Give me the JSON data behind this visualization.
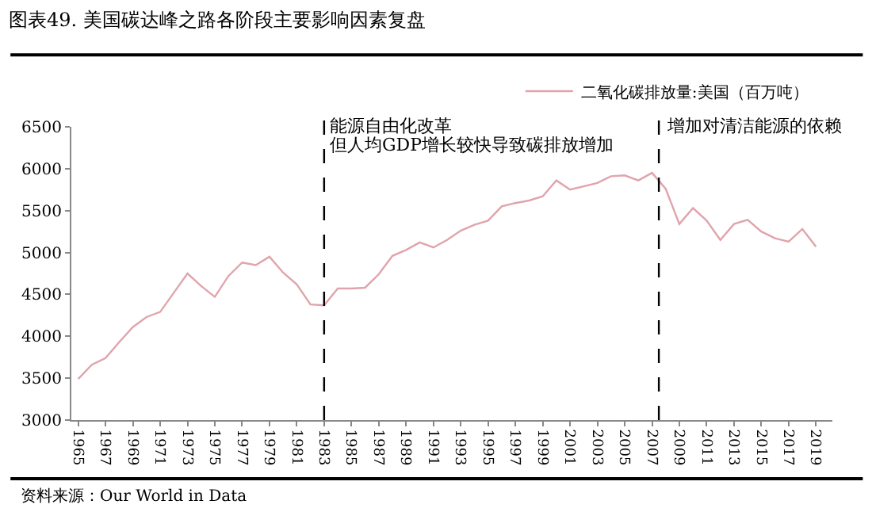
{
  "chart_data": {
    "type": "line",
    "title": "图表49. 美国碳达峰之路各阶段主要影响因素复盘",
    "x": [
      1965,
      1966,
      1967,
      1968,
      1969,
      1970,
      1971,
      1972,
      1973,
      1974,
      1975,
      1976,
      1977,
      1978,
      1979,
      1980,
      1981,
      1982,
      1983,
      1984,
      1985,
      1986,
      1987,
      1988,
      1989,
      1990,
      1991,
      1992,
      1993,
      1994,
      1995,
      1996,
      1997,
      1998,
      1999,
      2000,
      2001,
      2002,
      2003,
      2004,
      2005,
      2006,
      2007,
      2008,
      2009,
      2010,
      2011,
      2012,
      2013,
      2014,
      2015,
      2016,
      2017,
      2018,
      2019
    ],
    "series": [
      {
        "name": "二氧化碳排放量:美国（百万吨）",
        "color": "#e0a4ac",
        "values": [
          3490,
          3660,
          3740,
          3930,
          4110,
          4230,
          4290,
          4520,
          4750,
          4600,
          4470,
          4720,
          4880,
          4850,
          4950,
          4760,
          4620,
          4380,
          4370,
          4570,
          4570,
          4580,
          4740,
          4960,
          5030,
          5120,
          5060,
          5150,
          5260,
          5330,
          5380,
          5550,
          5590,
          5620,
          5670,
          5860,
          5750,
          5790,
          5830,
          5910,
          5920,
          5860,
          5950,
          5760,
          5340,
          5530,
          5380,
          5150,
          5340,
          5390,
          5250,
          5170,
          5130,
          5280,
          5070
        ]
      }
    ],
    "xlim": [
      1964.5,
      2020.2
    ],
    "xticks": [
      1965,
      1967,
      1969,
      1971,
      1973,
      1975,
      1977,
      1979,
      1981,
      1983,
      1985,
      1987,
      1989,
      1991,
      1993,
      1995,
      1997,
      1999,
      2001,
      2003,
      2005,
      2007,
      2009,
      2011,
      2013,
      2015,
      2017,
      2019
    ],
    "ylim": [
      3000,
      6500
    ],
    "yticks": [
      3000,
      3500,
      4000,
      4500,
      5000,
      5500,
      6000,
      6500
    ],
    "ref_lines": [
      {
        "axis": "x",
        "value": 1983,
        "label": "能源自由化改革",
        "color": "#000000",
        "line_style": "dashed"
      },
      {
        "axis": "x",
        "value": 2007.5,
        "label": "增加对清洁能源的依赖",
        "color": "#000000",
        "line_style": "dashed"
      }
    ],
    "annotations": [
      {
        "text": "但人均GDP增长较快导致碳排放增加",
        "x": 1983,
        "y": 6280
      },
      "资料来源：Our World in Data"
    ],
    "legend": "top",
    "grid": false,
    "marker": "none",
    "line_style": "solid"
  }
}
